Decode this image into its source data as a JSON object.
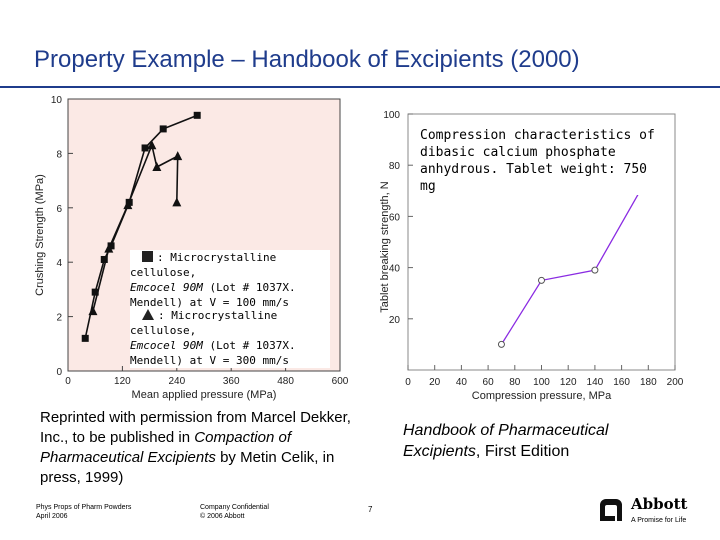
{
  "slide": {
    "title": "Property Example – Handbook of Excipients (2000)",
    "credit_pre": "Reprinted with permission from Marcel Dekker, Inc., to be published in ",
    "credit_italic": "Compaction of Pharmaceutical Excipients",
    "credit_post": " by Metin Celik, in press, 1999)",
    "handbook_italic": "Handbook of Pharmaceutical Excipients",
    "handbook_rest": ", First Edition",
    "footer_left_line1": "Phys Props of Pharm Powders",
    "footer_left_line2": "April 2006",
    "footer_mid_line1": "Company Confidential",
    "footer_mid_line2": "© 2006 Abbott",
    "page_number": "7",
    "logo_word": "Abbott",
    "logo_tagline": "A Promise for Life",
    "title_color": "#1f3c8c"
  },
  "chart_data": [
    {
      "type": "line",
      "xlabel": "Mean applied pressure (MPa)",
      "ylabel": "Crushing Strength (MPa)",
      "xlim": [
        0,
        600
      ],
      "ylim": [
        0,
        10
      ],
      "xticks": [
        0,
        120,
        240,
        360,
        480,
        600
      ],
      "yticks": [
        0,
        2,
        4,
        6,
        8,
        10
      ],
      "series": [
        {
          "name": "square",
          "marker": "square",
          "legend_name": ": Microcrystalline cellulose,",
          "legend_line2_italic": "Emcocel 90M",
          "legend_line2_rest": " (Lot # 1037X.",
          "legend_line3": "Mendell) at V = 100 mm/s",
          "x": [
            38,
            60,
            80,
            95,
            135,
            170,
            210,
            285
          ],
          "y": [
            1.2,
            2.9,
            4.1,
            4.6,
            6.2,
            8.2,
            8.9,
            9.4
          ]
        },
        {
          "name": "triangle",
          "marker": "triangle",
          "legend_name": ": Microcrystalline cellulose,",
          "legend_line2_italic": "Emcocel 90M",
          "legend_line2_rest": " (Lot # 1037X.",
          "legend_line3": "Mendell) at V = 300 mm/s",
          "x": [
            55,
            90,
            132,
            185,
            196,
            242,
            240
          ],
          "y": [
            2.2,
            4.5,
            6.1,
            8.3,
            7.5,
            7.9,
            6.2
          ]
        }
      ]
    },
    {
      "type": "line",
      "xlabel": "Compression pressure, MPa",
      "ylabel": "Tablet breaking strength, N",
      "xlim": [
        0,
        200
      ],
      "ylim": [
        0,
        100
      ],
      "xticks": [
        0,
        20,
        40,
        60,
        80,
        100,
        120,
        140,
        160,
        180,
        200
      ],
      "yticks": [
        20,
        40,
        60,
        80,
        100
      ],
      "annotation": "Compression characteristics of dibasic calcium phosphate anhydrous. Tablet weight: 750 mg",
      "series": [
        {
          "name": "dibasic calcium phosphate anhydrous",
          "marker": "circle",
          "x": [
            70,
            100,
            140,
            175
          ],
          "y": [
            10,
            35,
            39,
            71
          ]
        }
      ]
    }
  ]
}
